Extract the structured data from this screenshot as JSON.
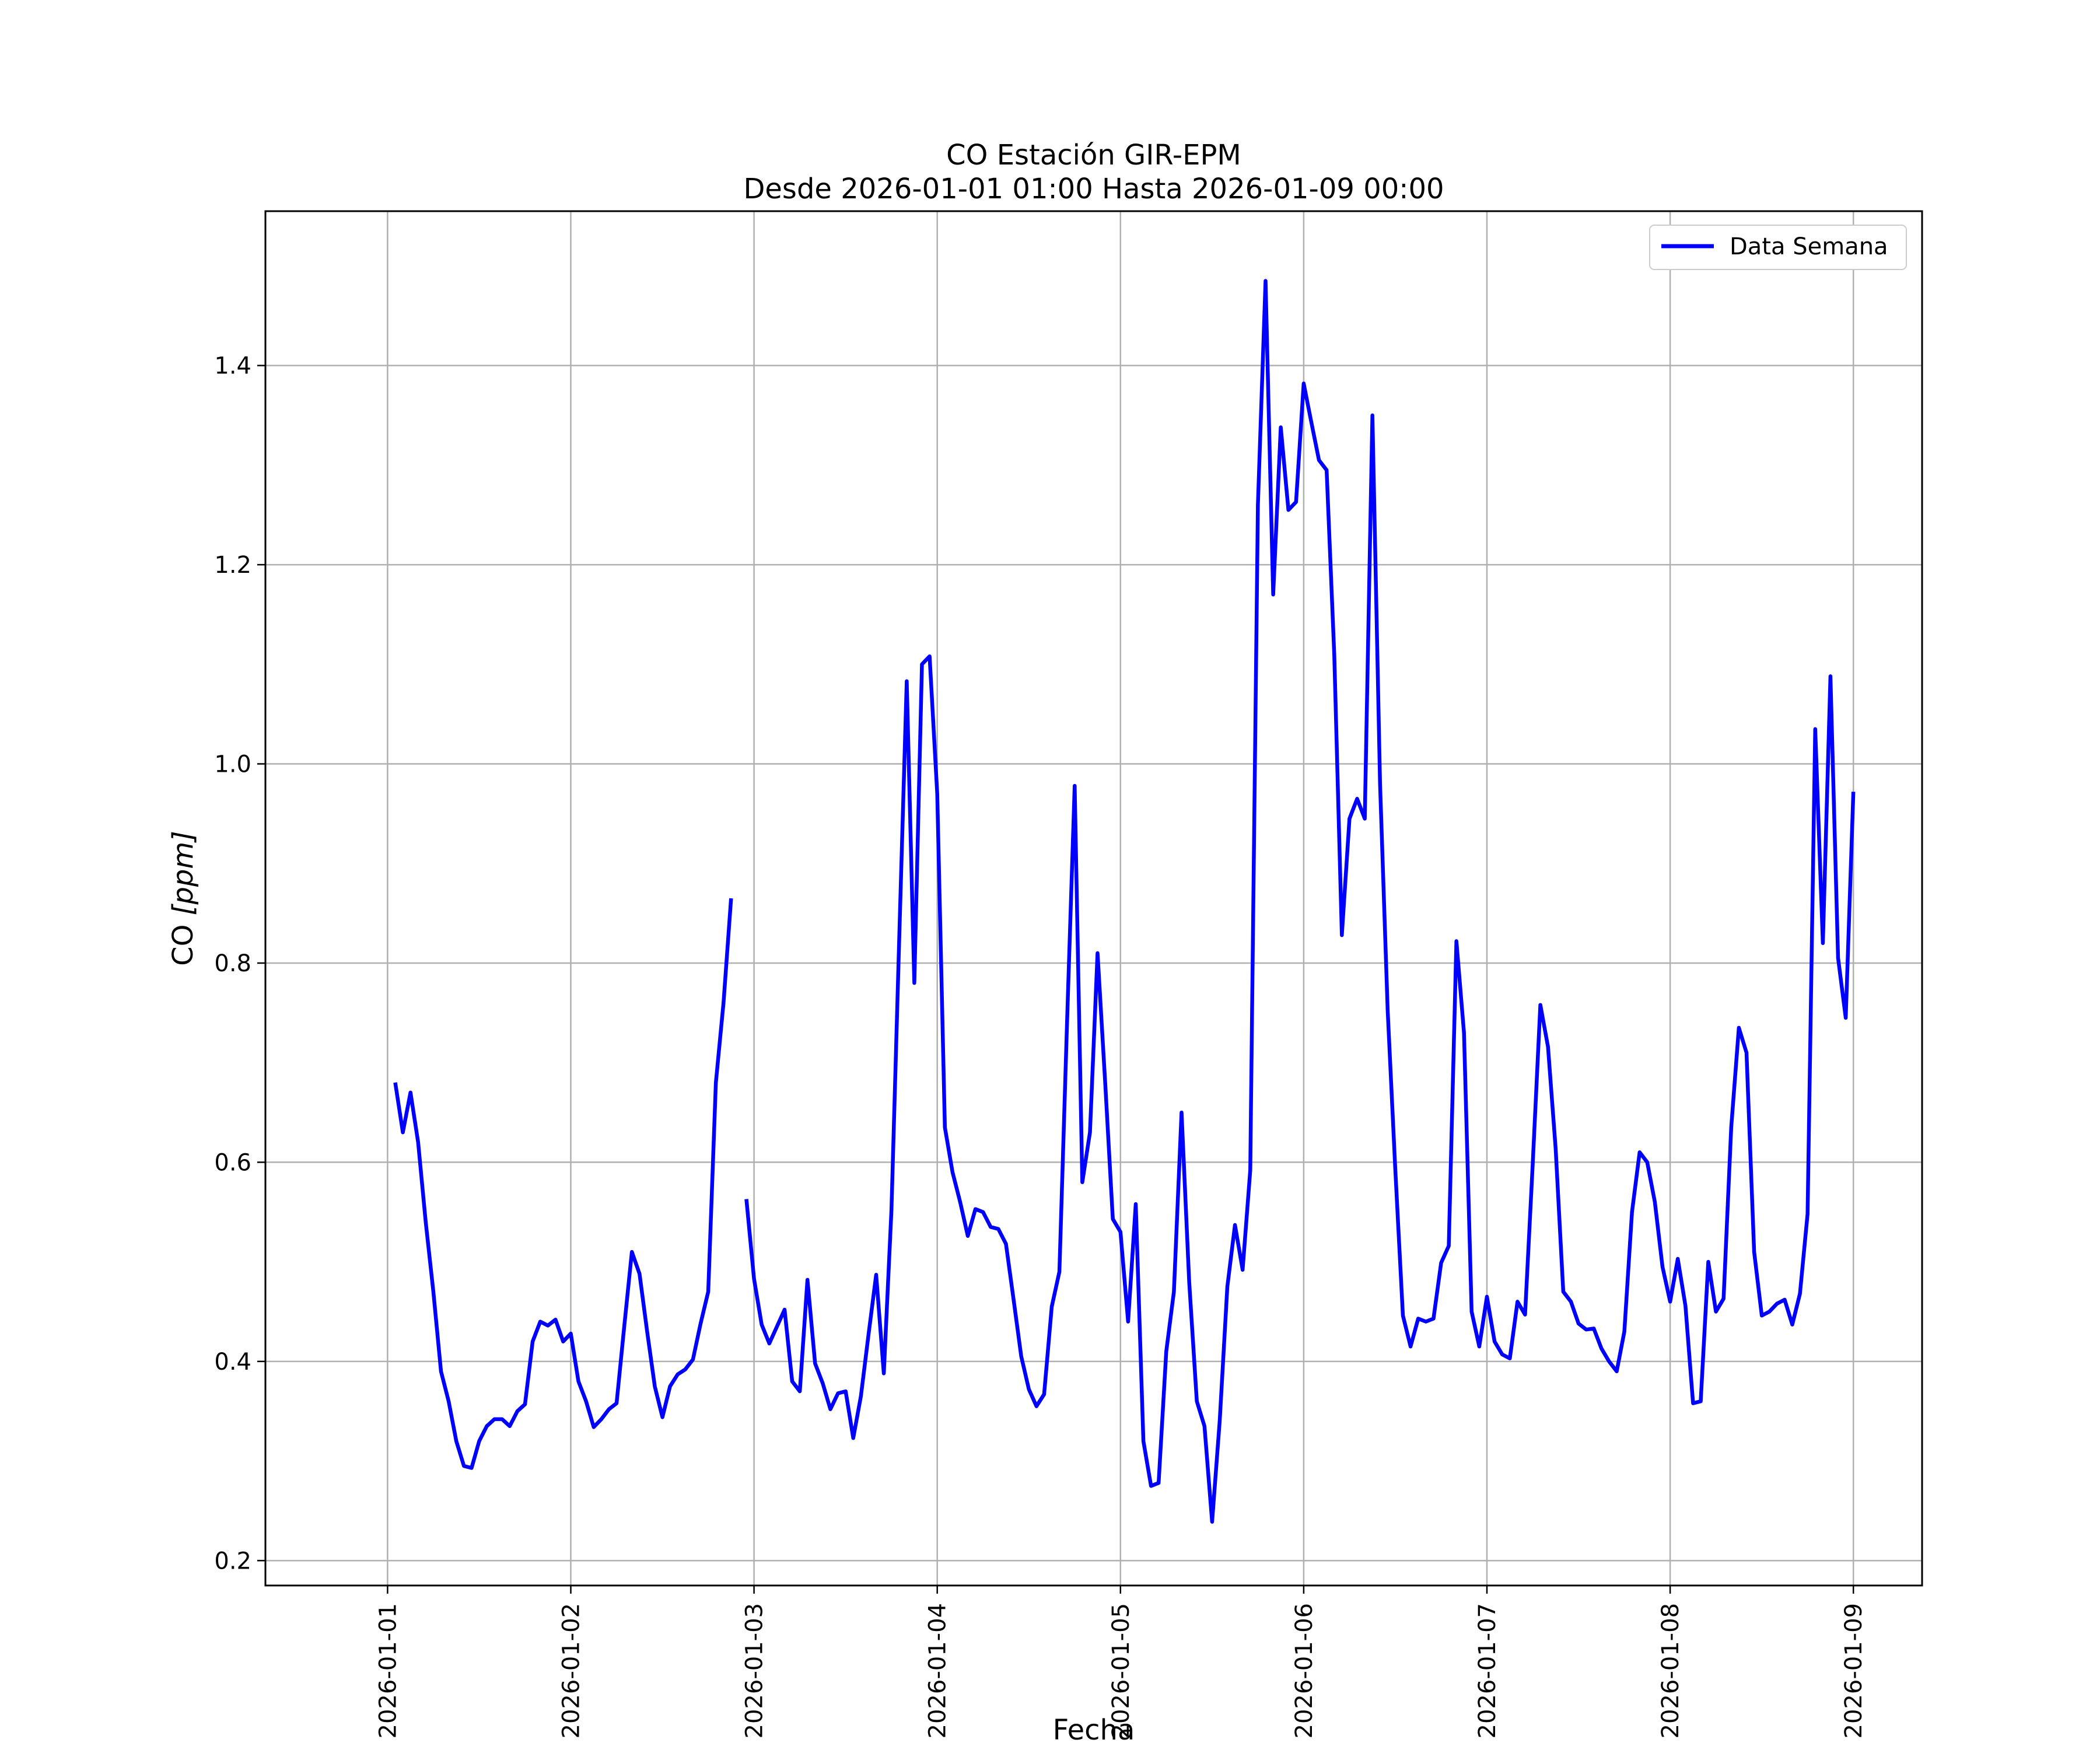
{
  "chart_data": {
    "type": "line",
    "title": "CO Estación GIR-EPM",
    "subtitle": "Desde 2026-01-01 01:00 Hasta 2026-01-09 00:00",
    "xlabel": "Fecha",
    "ylabel": "CO [ppm]",
    "ylabel_prefix": "CO ",
    "ylabel_unit": "[ppm]",
    "xlim": [
      "2025-12-31 08:00",
      "2026-01-09 09:00"
    ],
    "ylim": [
      0.175,
      1.555
    ],
    "x_ticks": [
      "2026-01-01",
      "2026-01-02",
      "2026-01-03",
      "2026-01-04",
      "2026-01-05",
      "2026-01-06",
      "2026-01-07",
      "2026-01-08",
      "2026-01-09"
    ],
    "y_ticks": [
      "0.2",
      "0.4",
      "0.6",
      "0.8",
      "1.0",
      "1.2",
      "1.4"
    ],
    "y_tick_values": [
      0.2,
      0.4,
      0.6,
      0.8,
      1.0,
      1.2,
      1.4
    ],
    "grid": true,
    "legend_position": "top-right",
    "colors": {
      "series": "#0000ff",
      "grid": "#b0b0b0",
      "axes": "#000000"
    },
    "series": [
      {
        "name": "Data Semana",
        "x_start": "2026-01-01 01:00",
        "x_step_hours": 1,
        "values": [
          0.68,
          0.63,
          0.67,
          0.62,
          0.54,
          0.47,
          0.39,
          0.36,
          0.32,
          0.295,
          0.293,
          0.32,
          0.335,
          0.342,
          0.342,
          0.335,
          0.35,
          0.357,
          0.42,
          0.44,
          0.436,
          0.442,
          0.42,
          0.428,
          0.38,
          0.36,
          0.334,
          0.342,
          0.352,
          0.358,
          0.435,
          0.51,
          0.488,
          0.43,
          0.375,
          0.344,
          0.375,
          0.387,
          0.392,
          0.402,
          0.438,
          0.47,
          0.68,
          0.76,
          0.865,
          null,
          0.563,
          0.483,
          0.437,
          0.418,
          0.435,
          0.452,
          0.38,
          0.37,
          0.482,
          0.398,
          0.378,
          0.352,
          0.368,
          0.37,
          0.323,
          0.365,
          0.427,
          0.487,
          0.388,
          0.552,
          0.82,
          1.083,
          0.78,
          1.1,
          1.108,
          0.97,
          0.635,
          0.59,
          0.56,
          0.526,
          0.553,
          0.55,
          0.535,
          0.533,
          0.518,
          0.462,
          0.405,
          0.372,
          0.355,
          0.367,
          0.455,
          0.49,
          0.74,
          0.978,
          0.58,
          0.63,
          0.81,
          0.68,
          0.543,
          0.53,
          0.44,
          0.558,
          0.32,
          0.275,
          0.278,
          0.41,
          0.47,
          0.65,
          0.48,
          0.36,
          0.335,
          0.239,
          0.34,
          0.475,
          0.537,
          0.492,
          0.592,
          1.26,
          1.485,
          1.17,
          1.338,
          1.255,
          1.263,
          1.382,
          1.343,
          1.305,
          1.295,
          1.11,
          0.828,
          0.945,
          0.965,
          0.945,
          1.35,
          0.98,
          0.752,
          0.592,
          0.446,
          0.415,
          0.443,
          0.44,
          0.443,
          0.499,
          0.516,
          0.822,
          0.73,
          0.45,
          0.415,
          0.465,
          0.42,
          0.407,
          0.403,
          0.46,
          0.447,
          0.598,
          0.758,
          0.716,
          0.614,
          0.47,
          0.46,
          0.438,
          0.432,
          0.433,
          0.413,
          0.4,
          0.39,
          0.43,
          0.55,
          0.61,
          0.6,
          0.56,
          0.495,
          0.46,
          0.503,
          0.456,
          0.358,
          0.36,
          0.5,
          0.45,
          0.463,
          0.635,
          0.735,
          0.71,
          0.51,
          0.446,
          0.45,
          0.458,
          0.462,
          0.437,
          0.468,
          0.548,
          1.035,
          0.82,
          1.088,
          0.805,
          0.745,
          0.972
        ]
      }
    ]
  }
}
